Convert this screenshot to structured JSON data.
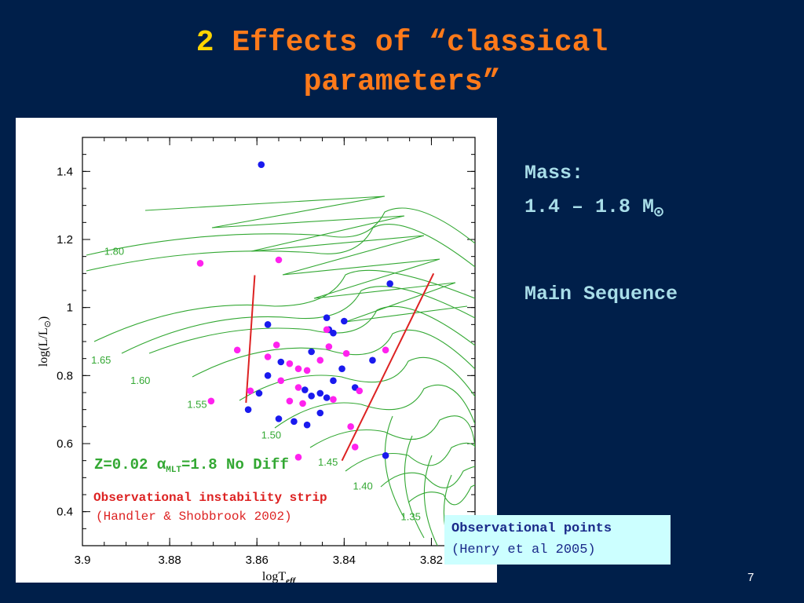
{
  "slide": {
    "title_number": "2",
    "title_line1": "Effects of “classical",
    "title_line2": "parameters”",
    "mass_label": "Mass:",
    "mass_range": "1.4 – 1.8 M",
    "sun_symbol": "⊙",
    "main_sequence": "Main Sequence",
    "obs_points_label": "Observational points",
    "obs_points_ref": "(Henry et al 2005)",
    "page_number": "7"
  },
  "colors": {
    "background": "#001f4a",
    "title": "#ff7a1a",
    "title_number": "#ffd400",
    "track": "#33a833",
    "strip": "#dd2222",
    "blue_points": "#1a1aee",
    "magenta_points": "#ff22ee"
  },
  "chart_data": {
    "type": "scatter",
    "xlabel": "logT",
    "xlabel_sub": "eff",
    "ylabel": "log(L/L",
    "ylabel_sun": "⊙",
    "ylabel_close": ")",
    "xlim": [
      3.9,
      3.81
    ],
    "ylim": [
      0.3,
      1.5
    ],
    "x_reversed": true,
    "x_ticks": [
      3.9,
      3.88,
      3.86,
      3.84,
      3.82
    ],
    "x_tick_labels": [
      "3.9",
      "3.88",
      "3.86",
      "3.84",
      "3.82"
    ],
    "y_ticks": [
      0.4,
      0.6,
      0.8,
      1.0,
      1.2,
      1.4
    ],
    "y_tick_labels": [
      "0.4",
      "0.6",
      "0.8",
      "1",
      "1.2",
      "1.4"
    ],
    "model_text": "Z=0.02 α",
    "model_sub": "MLT",
    "model_rest": "=1.8 No Diff",
    "strip_label": "Observational instability strip",
    "strip_ref": "(Handler & Shobbrook 2002)",
    "track_masses": [
      {
        "label": "1.80",
        "x": 3.895,
        "y": 1.155
      },
      {
        "label": "1.65",
        "x": 3.898,
        "y": 0.835
      },
      {
        "label": "1.60",
        "x": 3.889,
        "y": 0.775
      },
      {
        "label": "1.55",
        "x": 3.876,
        "y": 0.705
      },
      {
        "label": "1.50",
        "x": 3.859,
        "y": 0.615
      },
      {
        "label": "1.45",
        "x": 3.846,
        "y": 0.535
      },
      {
        "label": "1.40",
        "x": 3.838,
        "y": 0.465
      },
      {
        "label": "1.35",
        "x": 3.827,
        "y": 0.375
      }
    ],
    "series": [
      {
        "name": "",
        "color": "blue",
        "points": [
          [
            3.859,
            1.42
          ],
          [
            3.8295,
            1.07
          ],
          [
            3.844,
            0.97
          ],
          [
            3.84,
            0.96
          ],
          [
            3.8435,
            0.935
          ],
          [
            3.8425,
            0.925
          ],
          [
            3.8575,
            0.95
          ],
          [
            3.8475,
            0.87
          ],
          [
            3.8335,
            0.845
          ],
          [
            3.8545,
            0.84
          ],
          [
            3.8405,
            0.82
          ],
          [
            3.8425,
            0.785
          ],
          [
            3.8575,
            0.8
          ],
          [
            3.8375,
            0.765
          ],
          [
            3.849,
            0.758
          ],
          [
            3.8455,
            0.748
          ],
          [
            3.8475,
            0.74
          ],
          [
            3.844,
            0.735
          ],
          [
            3.8595,
            0.748
          ],
          [
            3.862,
            0.7
          ],
          [
            3.8455,
            0.69
          ],
          [
            3.855,
            0.673
          ],
          [
            3.8515,
            0.665
          ],
          [
            3.8485,
            0.655
          ],
          [
            3.8305,
            0.565
          ]
        ]
      },
      {
        "name": "",
        "color": "magenta",
        "points": [
          [
            3.873,
            1.13
          ],
          [
            3.855,
            1.14
          ],
          [
            3.844,
            0.935
          ],
          [
            3.8555,
            0.89
          ],
          [
            3.8645,
            0.875
          ],
          [
            3.8435,
            0.885
          ],
          [
            3.8525,
            0.835
          ],
          [
            3.8575,
            0.855
          ],
          [
            3.8455,
            0.845
          ],
          [
            3.8395,
            0.865
          ],
          [
            3.8305,
            0.875
          ],
          [
            3.8505,
            0.82
          ],
          [
            3.8485,
            0.815
          ],
          [
            3.8545,
            0.785
          ],
          [
            3.8505,
            0.765
          ],
          [
            3.8365,
            0.755
          ],
          [
            3.8615,
            0.755
          ],
          [
            3.8705,
            0.725
          ],
          [
            3.8525,
            0.725
          ],
          [
            3.8495,
            0.718
          ],
          [
            3.8425,
            0.73
          ],
          [
            3.8505,
            0.56
          ],
          [
            3.8385,
            0.65
          ],
          [
            3.8375,
            0.59
          ]
        ]
      }
    ],
    "instability_strip": {
      "blue_edge": [
        [
          3.8605,
          1.095
        ],
        [
          3.8625,
          0.72
        ]
      ],
      "red_edge": [
        [
          3.8195,
          1.1
        ],
        [
          3.8405,
          0.55
        ]
      ]
    }
  }
}
